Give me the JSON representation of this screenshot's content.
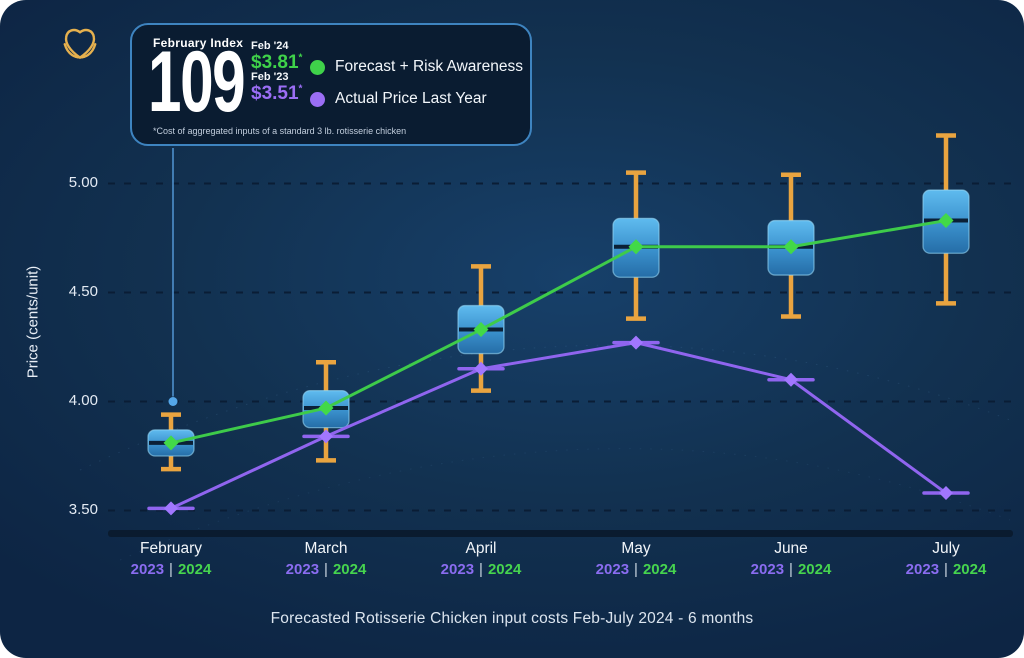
{
  "brand": {
    "logo_color": "#e6b14e"
  },
  "index_card": {
    "label": "February Index",
    "value": "109",
    "entries": [
      {
        "period": "Feb '24",
        "price": "$3.81",
        "note_mark": "*",
        "color": "#3fd24a"
      },
      {
        "period": "Feb '23",
        "price": "$3.51",
        "note_mark": "*",
        "color": "#9b6ef5"
      }
    ],
    "footnote": "*Cost of aggregated inputs of a standard 3 lb. rotisserie chicken"
  },
  "legend": [
    {
      "label": "Forecast + Risk Awareness",
      "color": "#3fd24a"
    },
    {
      "label": "Actual Price Last Year",
      "color": "#9b6ef5"
    }
  ],
  "chart_data": {
    "type": "line+boxplot",
    "title": "Forecasted Rotisserie Chicken input costs Feb-July 2024 - 6 months",
    "ylabel": "Price (cents/unit)",
    "yticks": [
      3.5,
      4.0,
      4.5,
      5.0
    ],
    "ylim": [
      3.35,
      5.3
    ],
    "grid": "dashed horizontal",
    "legend_position": "top-card",
    "categories": [
      "February",
      "March",
      "April",
      "May",
      "June",
      "July"
    ],
    "year_labels": {
      "left": "2023",
      "separator": "|",
      "right": "2024"
    },
    "series": [
      {
        "name": "Forecast + Risk Awareness",
        "type": "line",
        "marker": "diamond",
        "color": "#3ecb4a",
        "marker_color": "#42d948",
        "values": [
          3.81,
          3.97,
          4.33,
          4.71,
          4.71,
          4.83
        ]
      },
      {
        "name": "Actual Price Last Year",
        "type": "line",
        "marker": "diamond-with-dash",
        "color": "#9065ef",
        "marker_color": "#a177ff",
        "values": [
          3.51,
          3.84,
          4.15,
          4.27,
          4.1,
          3.58
        ]
      }
    ],
    "boxplot": {
      "whisker_color": "#e9a440",
      "median_color": "#0b2036",
      "box_gradient": [
        "#5fbbef",
        "#3a90cc",
        "#256da7"
      ],
      "boxes": [
        {
          "low": 3.69,
          "q1": 3.75,
          "median": 3.81,
          "q3": 3.87,
          "high": 3.94
        },
        {
          "low": 3.73,
          "q1": 3.88,
          "median": 3.97,
          "q3": 4.05,
          "high": 4.18
        },
        {
          "low": 4.05,
          "q1": 4.22,
          "median": 4.33,
          "q3": 4.44,
          "high": 4.62
        },
        {
          "low": 4.38,
          "q1": 4.57,
          "median": 4.71,
          "q3": 4.84,
          "high": 5.05
        },
        {
          "low": 4.39,
          "q1": 4.58,
          "median": 4.71,
          "q3": 4.83,
          "high": 5.04
        },
        {
          "low": 4.45,
          "q1": 4.68,
          "median": 4.83,
          "q3": 4.97,
          "high": 5.22
        }
      ]
    },
    "callout": {
      "from": "index-card",
      "month": "February",
      "value": 4.0
    }
  }
}
